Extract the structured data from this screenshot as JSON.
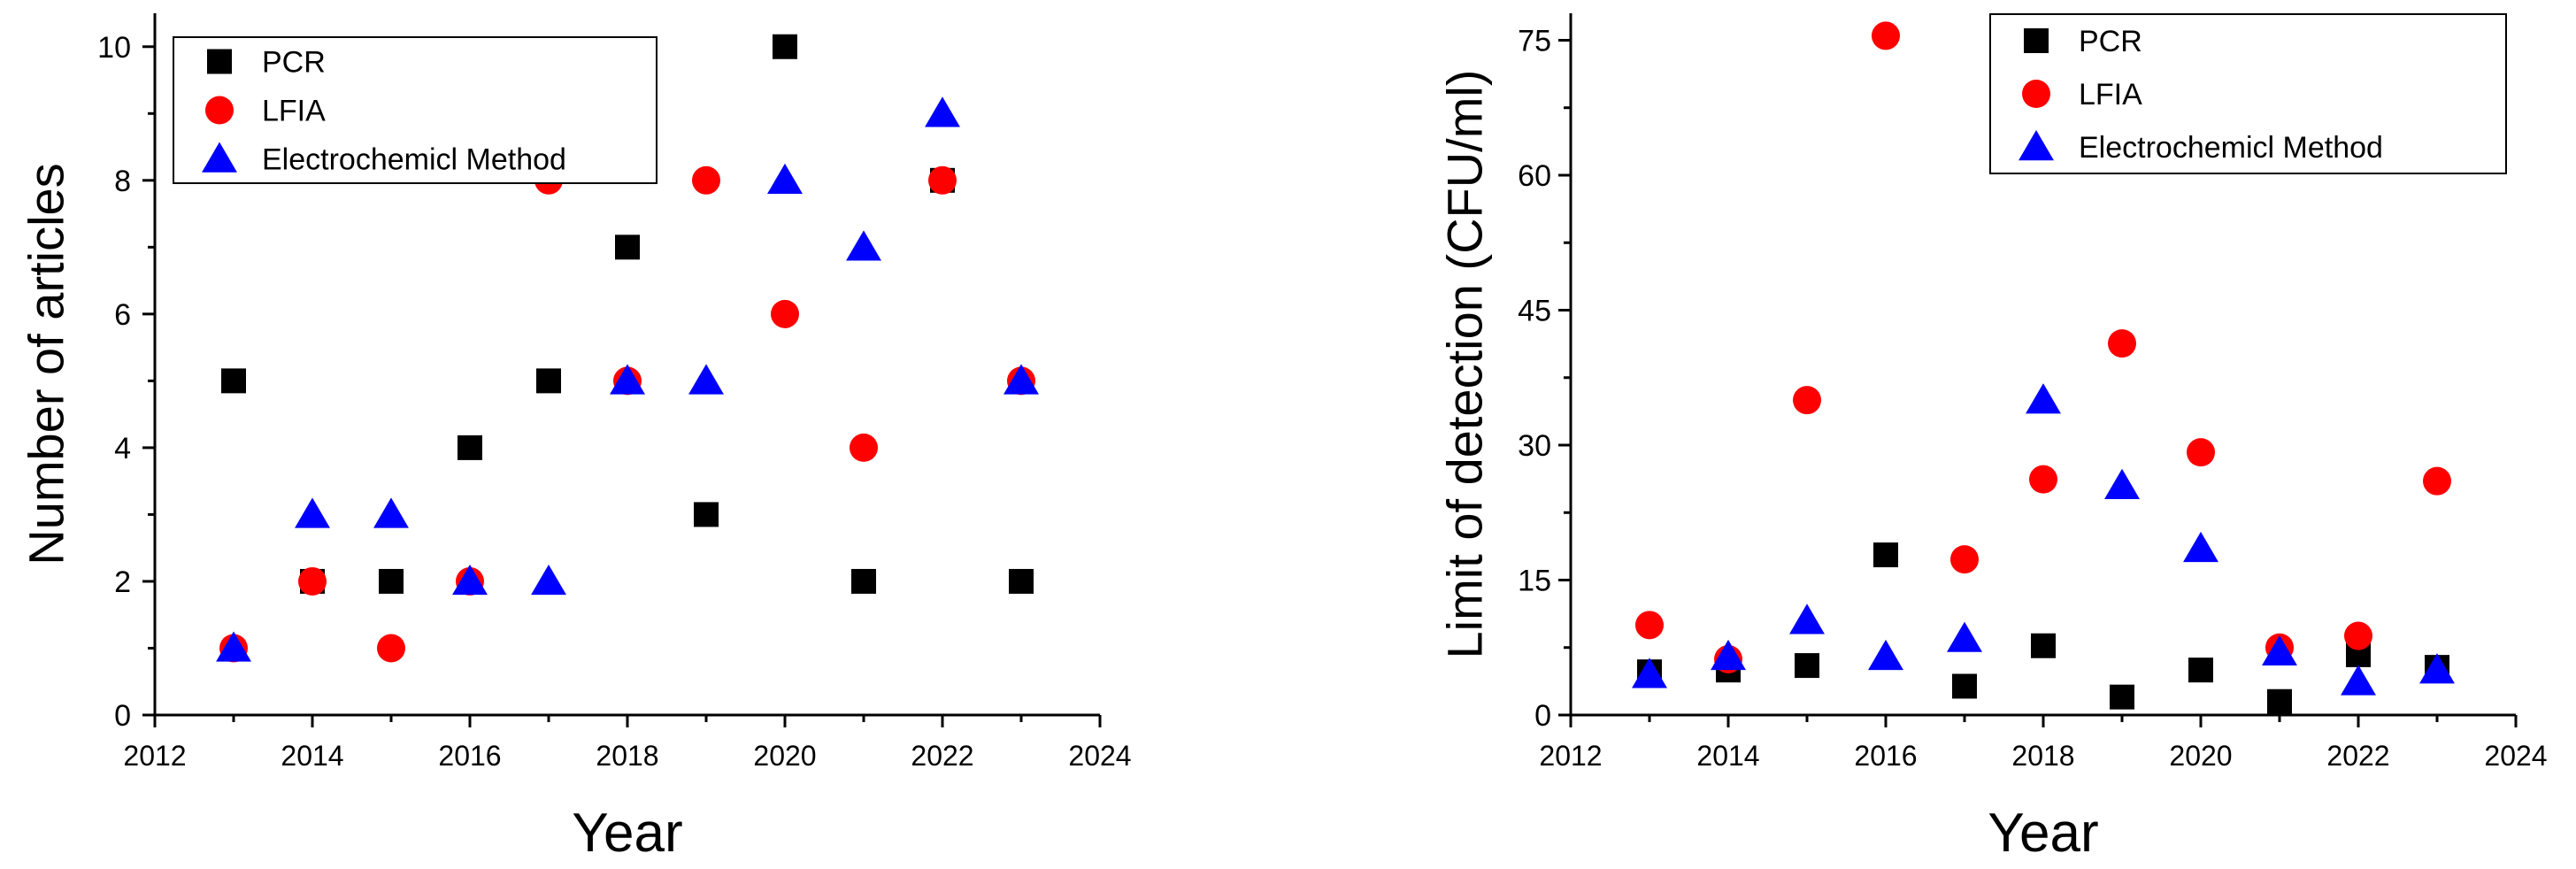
{
  "chart_data": [
    {
      "type": "scatter",
      "title": "",
      "xlabel": "Year",
      "ylabel": "Number of articles",
      "xlim": [
        2012,
        2024
      ],
      "ylim": [
        0,
        10.5
      ],
      "xticks": [
        2012,
        2014,
        2016,
        2018,
        2020,
        2022,
        2024
      ],
      "yticks": [
        0,
        2,
        4,
        6,
        8,
        10
      ],
      "x": [
        2013,
        2014,
        2015,
        2016,
        2017,
        2018,
        2019,
        2020,
        2021,
        2022,
        2023
      ],
      "legend_position": "top-left",
      "grid": false,
      "series": [
        {
          "name": "PCR",
          "marker": "square",
          "color": "#000000",
          "values": [
            5,
            2,
            2,
            4,
            5,
            7,
            3,
            10,
            2,
            8,
            2
          ]
        },
        {
          "name": "LFIA",
          "marker": "circle",
          "color": "#ff0000",
          "values": [
            1,
            2,
            1,
            2,
            8,
            5,
            8,
            6,
            4,
            8,
            5
          ]
        },
        {
          "name": "Electrochemicl Method",
          "marker": "triangle",
          "color": "#0000ff",
          "values": [
            1,
            3,
            3,
            2,
            2,
            5,
            5,
            8,
            7,
            9,
            5
          ]
        }
      ]
    },
    {
      "type": "scatter",
      "title": "",
      "xlabel": "Year",
      "ylabel": "Limit of detection (CFU/ml)",
      "xlim": [
        2012,
        2024
      ],
      "ylim": [
        0,
        78
      ],
      "xticks": [
        2012,
        2014,
        2016,
        2018,
        2020,
        2022,
        2024
      ],
      "yticks": [
        0,
        15,
        30,
        45,
        60,
        75
      ],
      "x": [
        2013,
        2014,
        2015,
        2016,
        2017,
        2018,
        2019,
        2020,
        2021,
        2022,
        2023
      ],
      "legend_position": "top-right",
      "grid": false,
      "series": [
        {
          "name": "PCR",
          "marker": "square",
          "color": "#000000",
          "values": [
            4.8,
            5.0,
            5.5,
            17.8,
            3.2,
            7.7,
            2.0,
            5.0,
            1.5,
            6.7,
            5.3
          ]
        },
        {
          "name": "LFIA",
          "marker": "circle",
          "color": "#ff0000",
          "values": [
            10.0,
            6.2,
            35.0,
            75.5,
            17.3,
            26.2,
            41.3,
            29.2,
            7.5,
            8.8,
            26.0
          ]
        },
        {
          "name": "Electrochemicl Method",
          "marker": "triangle",
          "color": "#0000ff",
          "values": [
            4.5,
            6.5,
            10.5,
            6.5,
            8.5,
            35.0,
            25.5,
            18.5,
            7.0,
            3.7,
            5.0
          ]
        }
      ]
    }
  ]
}
